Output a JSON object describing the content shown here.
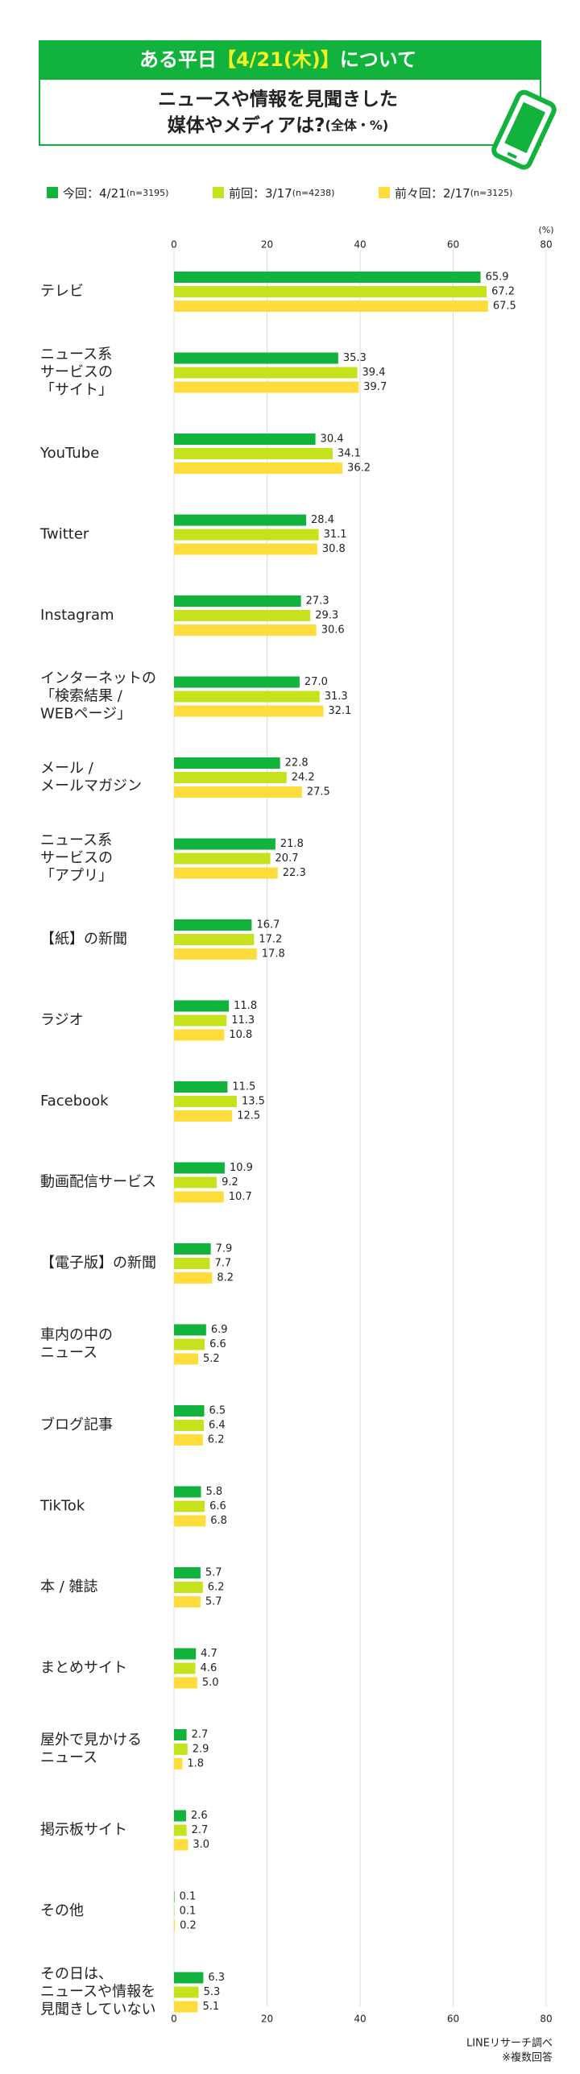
{
  "chart_data": {
    "type": "hbar",
    "header_prefix": "ある平日",
    "header_highlight": "【4/21(木)】",
    "header_suffix": "について",
    "subtitle_lines": [
      "ニュースや情報を見聞きした",
      "媒体やメディアは?"
    ],
    "subtitle_note": "(全体・%)",
    "unit_label": "(%)",
    "source_lines": [
      "LINEリサーチ調べ",
      "※複数回答"
    ],
    "xlim": [
      0,
      80
    ],
    "xticks": [
      0,
      20,
      40,
      60,
      80
    ],
    "grid": true,
    "categories": [
      [
        "テレビ"
      ],
      [
        "ニュース系",
        "サービスの",
        "「サイト」"
      ],
      [
        "YouTube"
      ],
      [
        "Twitter"
      ],
      [
        "Instagram"
      ],
      [
        "インターネットの",
        "「検索結果 /",
        "WEBページ」"
      ],
      [
        "メール /",
        "メールマガジン"
      ],
      [
        "ニュース系",
        "サービスの",
        "「アプリ」"
      ],
      [
        "【紙】の新聞"
      ],
      [
        "ラジオ"
      ],
      [
        "Facebook"
      ],
      [
        "動画配信サービス"
      ],
      [
        "【電子版】の新聞"
      ],
      [
        "車内の中の",
        "ニュース"
      ],
      [
        "ブログ記事"
      ],
      [
        "TikTok"
      ],
      [
        "本 / 雑誌"
      ],
      [
        "まとめサイト"
      ],
      [
        "屋外で見かける",
        "ニュース"
      ],
      [
        "掲示板サイト"
      ],
      [
        "その他"
      ],
      [
        "その日は、",
        "ニュースや情報を",
        "見聞きしていない"
      ]
    ],
    "series": [
      {
        "name": "今回：4/21",
        "note": "(n=3195)",
        "color": "#12b33c",
        "values": [
          65.9,
          35.3,
          30.4,
          28.4,
          27.3,
          27.0,
          22.8,
          21.8,
          16.7,
          11.8,
          11.5,
          10.9,
          7.9,
          6.9,
          6.5,
          5.8,
          5.7,
          4.7,
          2.7,
          2.6,
          0.1,
          6.3
        ],
        "value_labels": [
          "65.9",
          "35.3",
          "30.4",
          "28.4",
          "27.3",
          "27.0",
          "22.8",
          "21.8",
          "16.7",
          "11.8",
          "11.5",
          "10.9",
          "7.9",
          "6.9",
          "6.5",
          "5.8",
          "5.7",
          "4.7",
          "2.7",
          "2.6",
          "0.1",
          "6.3"
        ]
      },
      {
        "name": "前回：3/17",
        "note": "(n=4238)",
        "color": "#c5e21c",
        "values": [
          67.2,
          39.4,
          34.1,
          31.1,
          29.3,
          31.3,
          24.2,
          20.7,
          17.2,
          11.3,
          13.5,
          9.2,
          7.7,
          6.6,
          6.4,
          6.6,
          6.2,
          4.6,
          2.9,
          2.7,
          0.1,
          5.3
        ],
        "value_labels": [
          "67.2",
          "39.4",
          "34.1",
          "31.1",
          "29.3",
          "31.3",
          "24.2",
          "20.7",
          "17.2",
          "11.3",
          "13.5",
          "9.2",
          "7.7",
          "6.6",
          "6.4",
          "6.6",
          "6.2",
          "4.6",
          "2.9",
          "2.7",
          "0.1",
          "5.3"
        ]
      },
      {
        "name": "前々回：2/17",
        "note": "(n=3125)",
        "color": "#fddc3c",
        "values": [
          67.5,
          39.7,
          36.2,
          30.8,
          30.6,
          32.1,
          27.5,
          22.3,
          17.8,
          10.8,
          12.5,
          10.7,
          8.2,
          5.2,
          6.2,
          6.8,
          5.7,
          5.0,
          1.8,
          3.0,
          0.2,
          5.1
        ],
        "value_labels": [
          "67.5",
          "39.7",
          "36.2",
          "30.8",
          "30.6",
          "32.1",
          "27.5",
          "22.3",
          "17.8",
          "10.8",
          "12.5",
          "10.7",
          "8.2",
          "5.2",
          "6.2",
          "6.8",
          "5.7",
          "5.0",
          "1.8",
          "3.0",
          "0.2",
          "5.1"
        ]
      }
    ]
  }
}
